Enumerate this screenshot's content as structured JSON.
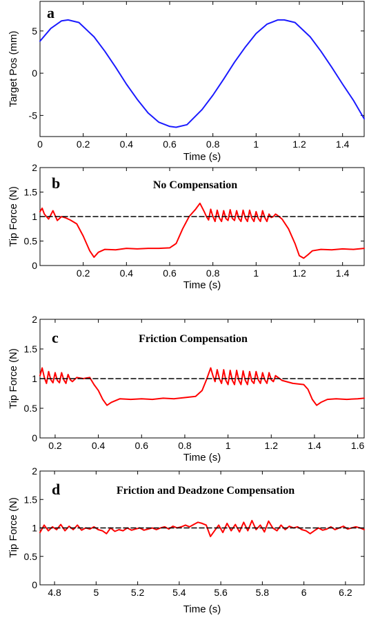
{
  "chart_data": [
    {
      "type": "line",
      "panel_letter": "a",
      "title": "",
      "xlabel": "Time (s)",
      "ylabel": "Target Pos (mm)",
      "xlim": [
        0,
        1.5
      ],
      "ylim": [
        -7.5,
        8.5
      ],
      "xticks": [
        0,
        0.2,
        0.4,
        0.6,
        0.8,
        1,
        1.2,
        1.4
      ],
      "yticks": [
        -5,
        0,
        5
      ],
      "series": [
        {
          "color": "#1a1aff",
          "style": "solid",
          "x": [
            0,
            0.05,
            0.1,
            0.13,
            0.18,
            0.25,
            0.3,
            0.35,
            0.4,
            0.45,
            0.5,
            0.55,
            0.6,
            0.63,
            0.68,
            0.75,
            0.8,
            0.85,
            0.9,
            0.95,
            1.0,
            1.05,
            1.1,
            1.13,
            1.18,
            1.25,
            1.3,
            1.35,
            1.4,
            1.45,
            1.5
          ],
          "y": [
            3.8,
            5.3,
            6.2,
            6.3,
            6.0,
            4.3,
            2.6,
            0.7,
            -1.3,
            -3.1,
            -4.7,
            -5.8,
            -6.3,
            -6.4,
            -6.1,
            -4.3,
            -2.6,
            -0.7,
            1.3,
            3.1,
            4.7,
            5.8,
            6.3,
            6.3,
            6.0,
            4.3,
            2.6,
            0.7,
            -1.3,
            -3.2,
            -5.4
          ]
        }
      ]
    },
    {
      "type": "line",
      "panel_letter": "b",
      "title": "No Compensation",
      "xlabel": "Time (s)",
      "ylabel": "Tip Force (N)",
      "xlim": [
        0,
        1.5
      ],
      "ylim": [
        0,
        2
      ],
      "xticks": [
        0.2,
        0.4,
        0.6,
        0.8,
        1,
        1.2,
        1.4
      ],
      "yticks": [
        0,
        0.5,
        1,
        1.5,
        2
      ],
      "series": [
        {
          "color": "#ff0000",
          "style": "solid",
          "x": [
            0,
            0.01,
            0.02,
            0.04,
            0.06,
            0.08,
            0.1,
            0.12,
            0.14,
            0.17,
            0.2,
            0.23,
            0.25,
            0.27,
            0.3,
            0.35,
            0.4,
            0.45,
            0.5,
            0.55,
            0.6,
            0.63,
            0.66,
            0.69,
            0.72,
            0.74,
            0.76,
            0.77,
            0.78,
            0.79,
            0.8,
            0.81,
            0.82,
            0.83,
            0.84,
            0.85,
            0.86,
            0.87,
            0.88,
            0.89,
            0.9,
            0.91,
            0.92,
            0.93,
            0.94,
            0.95,
            0.96,
            0.97,
            0.98,
            0.99,
            1.0,
            1.01,
            1.02,
            1.03,
            1.04,
            1.05,
            1.06,
            1.07,
            1.08,
            1.09,
            1.1,
            1.12,
            1.15,
            1.18,
            1.2,
            1.22,
            1.24,
            1.26,
            1.3,
            1.35,
            1.4,
            1.45,
            1.5
          ],
          "y": [
            1.1,
            1.17,
            1.05,
            0.95,
            1.12,
            0.92,
            1.0,
            0.97,
            0.93,
            0.85,
            0.6,
            0.3,
            0.17,
            0.27,
            0.33,
            0.32,
            0.35,
            0.34,
            0.35,
            0.35,
            0.36,
            0.45,
            0.75,
            1.0,
            1.15,
            1.27,
            1.1,
            1.0,
            0.93,
            1.15,
            1.0,
            0.9,
            1.13,
            0.97,
            0.9,
            1.12,
            0.96,
            0.92,
            1.14,
            0.96,
            0.92,
            1.12,
            0.96,
            0.9,
            1.13,
            0.97,
            0.9,
            1.13,
            0.97,
            0.9,
            1.1,
            0.96,
            0.9,
            1.12,
            0.98,
            0.9,
            1.05,
            0.98,
            1.0,
            1.05,
            1.02,
            0.95,
            0.75,
            0.45,
            0.2,
            0.15,
            0.22,
            0.3,
            0.33,
            0.32,
            0.34,
            0.33,
            0.35
          ]
        },
        {
          "color": "#000000",
          "style": "dashed",
          "x": [
            0,
            1.5
          ],
          "y": [
            1,
            1
          ]
        }
      ]
    },
    {
      "type": "line",
      "panel_letter": "c",
      "title": "Friction Compensation",
      "xlabel": "Time (s)",
      "ylabel": "Tip Force (N)",
      "xlim": [
        0.13,
        1.63
      ],
      "ylim": [
        0,
        2
      ],
      "xticks": [
        0.2,
        0.4,
        0.6,
        0.8,
        1,
        1.2,
        1.4,
        1.6
      ],
      "yticks": [
        0,
        0.5,
        1,
        1.5,
        2
      ],
      "series": [
        {
          "color": "#ff0000",
          "style": "solid",
          "x": [
            0.13,
            0.14,
            0.15,
            0.16,
            0.17,
            0.18,
            0.19,
            0.2,
            0.21,
            0.22,
            0.23,
            0.24,
            0.25,
            0.26,
            0.27,
            0.28,
            0.3,
            0.33,
            0.36,
            0.38,
            0.4,
            0.42,
            0.44,
            0.46,
            0.5,
            0.55,
            0.6,
            0.65,
            0.7,
            0.75,
            0.8,
            0.85,
            0.88,
            0.9,
            0.92,
            0.93,
            0.94,
            0.95,
            0.96,
            0.97,
            0.98,
            0.99,
            1.0,
            1.01,
            1.02,
            1.03,
            1.04,
            1.05,
            1.06,
            1.07,
            1.08,
            1.09,
            1.1,
            1.11,
            1.12,
            1.13,
            1.14,
            1.15,
            1.16,
            1.17,
            1.18,
            1.19,
            1.2,
            1.21,
            1.22,
            1.25,
            1.3,
            1.35,
            1.37,
            1.39,
            1.41,
            1.43,
            1.46,
            1.5,
            1.55,
            1.6,
            1.63
          ],
          "y": [
            1.05,
            1.18,
            1.02,
            0.92,
            1.12,
            0.98,
            0.93,
            1.1,
            0.97,
            0.93,
            1.1,
            0.98,
            0.92,
            1.07,
            0.98,
            0.95,
            1.02,
            1.0,
            1.02,
            0.9,
            0.8,
            0.65,
            0.55,
            0.6,
            0.66,
            0.65,
            0.66,
            0.65,
            0.67,
            0.66,
            0.68,
            0.7,
            0.8,
            0.98,
            1.18,
            1.05,
            0.95,
            1.15,
            1.0,
            0.92,
            1.15,
            0.97,
            0.9,
            1.14,
            0.97,
            0.9,
            1.14,
            0.97,
            0.9,
            1.13,
            0.97,
            0.9,
            1.12,
            0.96,
            0.92,
            1.12,
            0.98,
            0.92,
            1.1,
            0.98,
            0.92,
            1.1,
            0.98,
            0.95,
            1.05,
            0.97,
            0.92,
            0.9,
            0.82,
            0.65,
            0.55,
            0.6,
            0.65,
            0.66,
            0.65,
            0.66,
            0.67
          ]
        },
        {
          "color": "#000000",
          "style": "dashed",
          "x": [
            0.13,
            1.63
          ],
          "y": [
            1,
            1
          ]
        }
      ]
    },
    {
      "type": "line",
      "panel_letter": "d",
      "title": "Friction and Deadzone Compensation",
      "xlabel": "Time (s)",
      "ylabel": "Tip Force (N)",
      "xlim": [
        4.73,
        6.29
      ],
      "ylim": [
        0,
        2
      ],
      "xticks": [
        4.8,
        5,
        5.2,
        5.4,
        5.6,
        5.8,
        6,
        6.2
      ],
      "yticks": [
        0,
        0.5,
        1,
        1.5,
        2
      ],
      "series": [
        {
          "color": "#ff0000",
          "style": "solid",
          "x": [
            4.73,
            4.75,
            4.77,
            4.79,
            4.81,
            4.83,
            4.85,
            4.87,
            4.89,
            4.91,
            4.93,
            4.95,
            4.97,
            4.99,
            5.01,
            5.03,
            5.05,
            5.07,
            5.09,
            5.11,
            5.13,
            5.15,
            5.17,
            5.19,
            5.21,
            5.23,
            5.25,
            5.27,
            5.29,
            5.31,
            5.33,
            5.35,
            5.37,
            5.39,
            5.41,
            5.43,
            5.45,
            5.47,
            5.49,
            5.51,
            5.53,
            5.55,
            5.57,
            5.59,
            5.61,
            5.63,
            5.65,
            5.67,
            5.69,
            5.71,
            5.73,
            5.75,
            5.77,
            5.79,
            5.81,
            5.83,
            5.85,
            5.87,
            5.89,
            5.91,
            5.93,
            5.95,
            5.97,
            5.99,
            6.01,
            6.03,
            6.05,
            6.07,
            6.09,
            6.11,
            6.13,
            6.15,
            6.17,
            6.19,
            6.21,
            6.23,
            6.25,
            6.27,
            6.29
          ],
          "y": [
            0.92,
            1.05,
            0.95,
            1.02,
            0.97,
            1.06,
            0.95,
            1.03,
            0.97,
            1.05,
            0.96,
            1.0,
            0.98,
            1.02,
            0.97,
            0.95,
            0.9,
            1.0,
            0.94,
            0.97,
            0.95,
            1.0,
            0.96,
            0.98,
            1.0,
            0.96,
            0.98,
            1.0,
            0.97,
            1.0,
            1.02,
            0.98,
            1.03,
            1.0,
            1.02,
            1.05,
            1.02,
            1.06,
            1.1,
            1.08,
            1.05,
            0.85,
            0.95,
            1.05,
            0.92,
            1.08,
            0.95,
            1.06,
            0.93,
            1.1,
            0.95,
            1.13,
            0.97,
            1.05,
            0.93,
            1.12,
            1.0,
            0.95,
            1.05,
            0.97,
            1.03,
            1.0,
            1.02,
            0.97,
            0.95,
            0.9,
            0.95,
            1.0,
            0.96,
            0.98,
            1.02,
            0.97,
            1.0,
            1.03,
            0.98,
            1.0,
            1.02,
            1.0,
            0.97
          ]
        },
        {
          "color": "#000000",
          "style": "dashed",
          "x": [
            4.73,
            6.29
          ],
          "y": [
            1,
            1
          ]
        }
      ]
    }
  ]
}
